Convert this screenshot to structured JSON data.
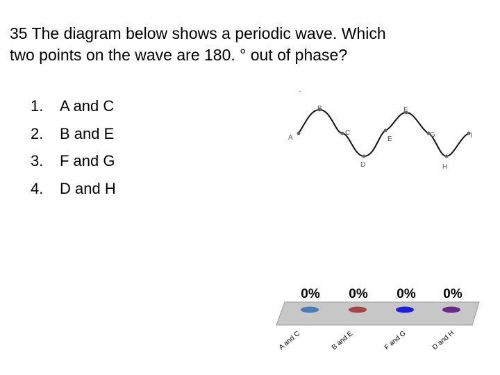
{
  "question": {
    "line1": "35 The diagram below shows a periodic wave. Which",
    "line2": "two points on the wave are 180. ° out of phase?"
  },
  "options": [
    {
      "number": "1.",
      "text": "A and C"
    },
    {
      "number": "2.",
      "text": "B and E"
    },
    {
      "number": "3.",
      "text": "F and G"
    },
    {
      "number": "4.",
      "text": "D and H"
    }
  ],
  "wave_points": [
    "A",
    "B",
    "C",
    "D",
    "E",
    "F",
    "G",
    "H",
    "I"
  ],
  "poll": {
    "responses": [
      {
        "percent": "0%",
        "label": "A and C",
        "color": "#4a7fb5"
      },
      {
        "percent": "0%",
        "label": "B and E",
        "color": "#a04848"
      },
      {
        "percent": "0%",
        "label": "F and G",
        "color": "#1f1fd6"
      },
      {
        "percent": "0%",
        "label": "D and H",
        "color": "#6b2a8a"
      }
    ]
  }
}
